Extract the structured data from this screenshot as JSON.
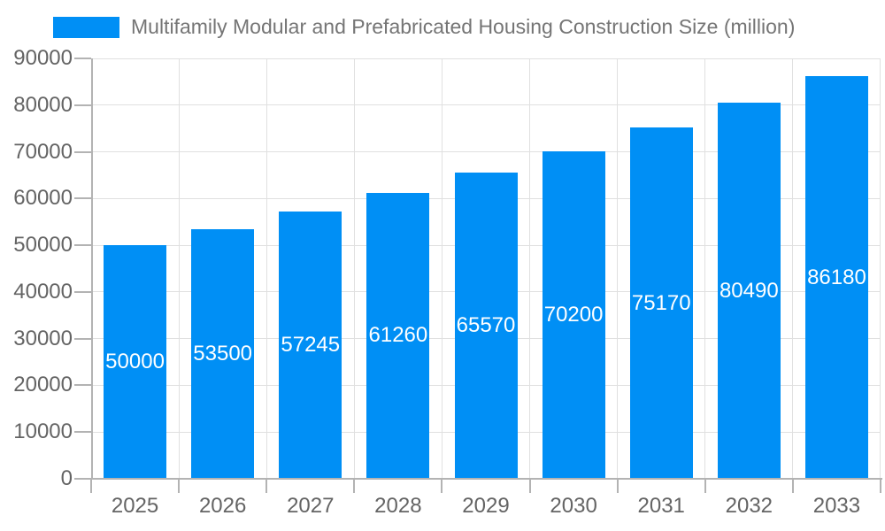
{
  "legend": {
    "label": "Multifamily Modular and Prefabricated Housing Construction Size (million)",
    "swatch_color": "#008ff5"
  },
  "chart_data": {
    "type": "bar",
    "title": "Multifamily Modular and Prefabricated Housing Construction Size (million)",
    "categories": [
      "2025",
      "2026",
      "2027",
      "2028",
      "2029",
      "2030",
      "2031",
      "2032",
      "2033"
    ],
    "series": [
      {
        "name": "Multifamily Modular and Prefabricated Housing Construction Size (million)",
        "values": [
          50000,
          53500,
          57245,
          61260,
          65570,
          70200,
          75170,
          80490,
          86180
        ],
        "color": "#008ff5"
      }
    ],
    "bar_labels": [
      "50000",
      "53500",
      "57245",
      "61260",
      "65570",
      "70200",
      "75170",
      "80490",
      "86180"
    ],
    "bar_label_color": "#ffffff",
    "xlabel": "",
    "ylabel": "",
    "ylim": [
      0,
      90000
    ],
    "ytick_step": 10000,
    "yticks": [
      "0",
      "10000",
      "20000",
      "30000",
      "40000",
      "50000",
      "60000",
      "70000",
      "80000",
      "90000"
    ],
    "grid": true,
    "legend_position": "top-left",
    "colors": {
      "axis_text": "#646464",
      "grid_line": "#e0e0e0",
      "axis_line": "#b3b3b3"
    }
  }
}
